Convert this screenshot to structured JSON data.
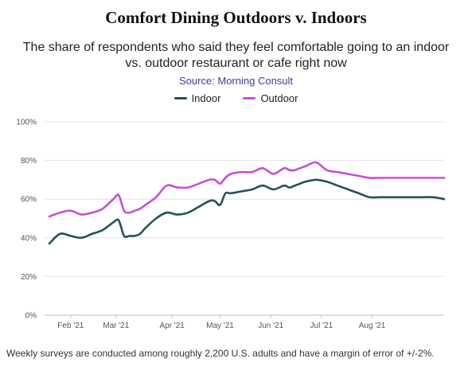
{
  "header": {
    "title": "Comfort Dining Outdoors v. Indoors",
    "subtitle": "The share of respondents who said they feel comfortable going to an indoor vs. outdoor restaurant or cafe right now",
    "source": "Source: Morning Consult"
  },
  "footnote": "Weekly surveys are conducted among roughly 2,200 U.S. adults and have a margin of error of +/-2%.",
  "colors": {
    "indoor": "#24525a",
    "outdoor": "#c84fd6",
    "grid": "#e2e2e2"
  },
  "chart_data": {
    "type": "line",
    "title": "Comfort Dining Outdoors v. Indoors",
    "xlabel": "",
    "ylabel": "",
    "ylim": [
      0,
      100
    ],
    "y_ticks": [
      0,
      20,
      40,
      60,
      80,
      100
    ],
    "y_tick_labels": [
      "0%",
      "20%",
      "40%",
      "60%",
      "80%",
      "100%"
    ],
    "x_tick_labels": [
      "Feb '21",
      "Mar '21",
      "Apr '21",
      "May '21",
      "Jun '21",
      "Jul '21",
      "Aug '21"
    ],
    "x_tick_weeks": [
      4,
      12.5,
      23,
      32,
      41.5,
      51,
      60.5
    ],
    "x_week_range": [
      0,
      74
    ],
    "grid": "horizontal",
    "legend_placement": "top-center",
    "series": [
      {
        "name": "Indoor",
        "x": [
          0,
          2,
          4,
          6,
          8,
          10,
          12,
          13,
          14,
          15,
          16,
          17,
          18,
          20,
          22,
          24,
          26,
          28,
          30,
          31,
          32,
          33,
          34,
          36,
          38,
          40,
          42,
          44,
          45,
          46,
          47,
          48,
          50,
          52,
          54,
          56,
          58,
          60,
          62,
          64,
          66,
          68,
          70,
          72,
          74
        ],
        "values": [
          37,
          42,
          41,
          40,
          42,
          44,
          48,
          49,
          41,
          41,
          41,
          42,
          45,
          50,
          53,
          52,
          53,
          56,
          59,
          59,
          57,
          63,
          63,
          64,
          65,
          67,
          65,
          67,
          66,
          67,
          68,
          69,
          70,
          69,
          67,
          65,
          63,
          61,
          61,
          61,
          61,
          61,
          61,
          61,
          60
        ]
      },
      {
        "name": "Outdoor",
        "x": [
          0,
          2,
          4,
          6,
          8,
          10,
          12,
          13,
          14,
          15,
          16,
          17,
          18,
          20,
          22,
          24,
          26,
          28,
          30,
          31,
          32,
          33,
          34,
          36,
          38,
          40,
          42,
          44,
          45,
          46,
          47,
          48,
          50,
          52,
          54,
          56,
          58,
          60,
          62,
          64,
          66,
          68,
          70,
          72,
          74
        ],
        "values": [
          51,
          53,
          54,
          52,
          53,
          55,
          60,
          62,
          54,
          53,
          54,
          55,
          57,
          61,
          67,
          66,
          66,
          68,
          70,
          70,
          68,
          71,
          73,
          74,
          74,
          76,
          73,
          76,
          75,
          75,
          76,
          77,
          79,
          75,
          74,
          73,
          72,
          71,
          71,
          71,
          71,
          71,
          71,
          71,
          71
        ]
      }
    ]
  }
}
